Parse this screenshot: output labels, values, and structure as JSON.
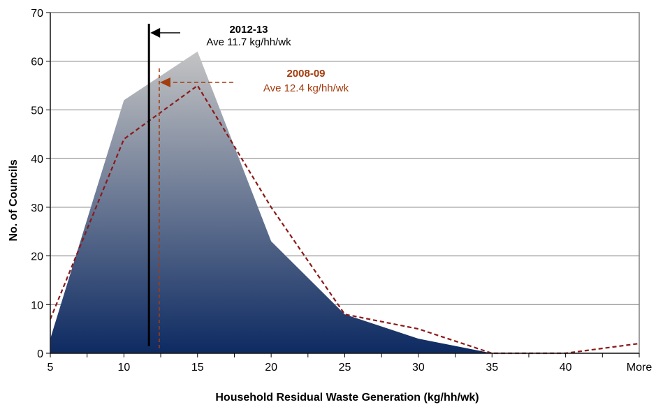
{
  "chart_data": {
    "type": "area",
    "categories": [
      "5",
      "10",
      "15",
      "20",
      "25",
      "30",
      "35",
      "40",
      "More"
    ],
    "series": [
      {
        "name": "2012-13",
        "type": "area",
        "values": [
          3,
          52,
          62,
          23,
          8,
          3,
          0,
          0,
          0
        ]
      },
      {
        "name": "2008-09",
        "type": "line",
        "values": [
          7,
          44,
          55,
          30,
          8,
          5,
          0,
          0,
          2
        ]
      }
    ],
    "xlabel": "Household Residual Waste Generation (kg/hh/wk)",
    "ylabel": "No. of Councils",
    "ylim": [
      0,
      70
    ],
    "yticks": [
      0,
      10,
      20,
      30,
      40,
      50,
      60,
      70
    ],
    "grid": true,
    "annotations": [
      {
        "id": "current",
        "title": "2012-13",
        "text": "Ave 11.7 kg/hh/wk",
        "value": 11.7,
        "color": "#000000",
        "style": "solid"
      },
      {
        "id": "previous",
        "title": "2008-09",
        "text": "Ave 12.4 kg/hh/wk",
        "value": 12.4,
        "color": "#a33c0e",
        "style": "dashed"
      }
    ],
    "colors": {
      "area_top": "#c4c4c4",
      "area_bottom": "#0d2a62",
      "line_2008": "#8b1a1a",
      "annotation_2008": "#a33c0e",
      "annotation_2012": "#000000"
    }
  }
}
